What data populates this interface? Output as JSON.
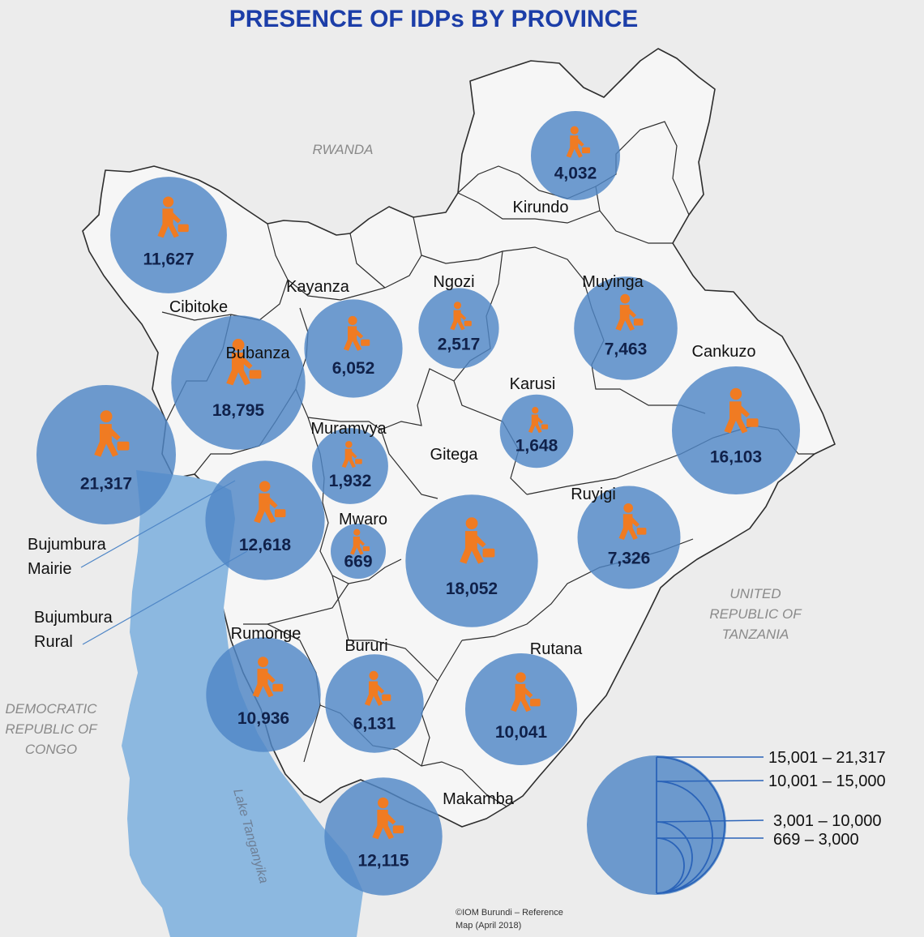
{
  "title": "PRESENCE OF IDPs BY PROVINCE",
  "countries": {
    "rwanda": "RWANDA",
    "tanzania": [
      "UNITED",
      "REPUBLIC OF",
      "TANZANIA"
    ],
    "drc": [
      "DEMOCRATIC",
      "REPUBLIC OF",
      "CONGO"
    ]
  },
  "lake": "Lake Tanganyika",
  "provinces": [
    {
      "name": "Cibitoke",
      "value": "11,627",
      "n": 11627
    },
    {
      "name": "Kirundo",
      "value": "4,032",
      "n": 4032
    },
    {
      "name": "Kayanza",
      "value": "6,052",
      "n": 6052
    },
    {
      "name": "Ngozi",
      "value": "2,517",
      "n": 2517
    },
    {
      "name": "Muyinga",
      "value": "7,463",
      "n": 7463
    },
    {
      "name": "Bubanza",
      "value": "18,795",
      "n": 18795
    },
    {
      "name": "Cankuzo",
      "value": "16,103",
      "n": 16103
    },
    {
      "name": "Karusi",
      "value": "1,648",
      "n": 1648
    },
    {
      "name": "Muramvya",
      "value": "1,932",
      "n": 1932
    },
    {
      "name": "Gitega",
      "value": "18,052",
      "n": 18052
    },
    {
      "name": "Bujumbura Mairie",
      "value": "21,317",
      "n": 21317
    },
    {
      "name": "Bujumbura Rural",
      "value": "12,618",
      "n": 12618
    },
    {
      "name": "Mwaro",
      "value": "669",
      "n": 669
    },
    {
      "name": "Ruyigi",
      "value": "7,326",
      "n": 7326
    },
    {
      "name": "Rumonge",
      "value": "10,936",
      "n": 10936
    },
    {
      "name": "Bururi",
      "value": "6,131",
      "n": 6131
    },
    {
      "name": "Rutana",
      "value": "10,041",
      "n": 10041
    },
    {
      "name": "Makamba",
      "value": "12,115",
      "n": 12115
    }
  ],
  "legend": [
    "15,001 – 21,317",
    "10,001 – 15,000",
    "3,001 – 10,000",
    "669 – 3,000"
  ],
  "credit": [
    "©IOM Burundi – Reference",
    "Map (April 2018)"
  ],
  "colors": {
    "bubble": "#4f86c6",
    "icon": "#f07b22",
    "title": "#1c3ea8",
    "lake": "#8cb8e0"
  },
  "icon": "person-walking-with-luggage-icon"
}
